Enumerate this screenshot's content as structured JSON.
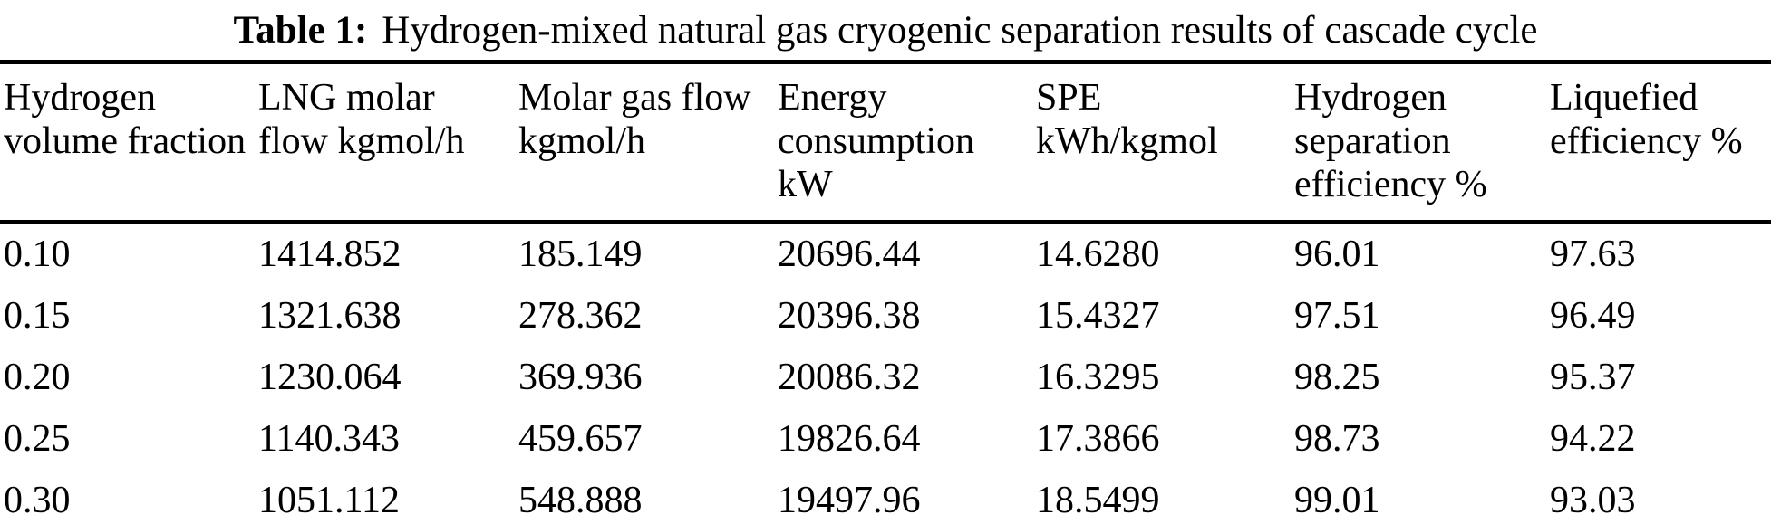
{
  "colors": {
    "background": "#ffffff",
    "text": "#000000",
    "rule": "#000000"
  },
  "table": {
    "title_label": "Table 1:",
    "title_text": "Hydrogen-mixed natural gas cryogenic separation results of cascade cycle",
    "columns": [
      "Hydrogen volume fraction",
      "LNG molar flow kgmol/h",
      "Molar gas flow kgmol/h",
      "Energy consumption kW",
      "SPE kWh/kgmol",
      "Hydrogen separation efficiency %",
      "Liquefied efficiency %"
    ],
    "rows": [
      [
        "0.10",
        "1414.852",
        "185.149",
        "20696.44",
        "14.6280",
        "96.01",
        "97.63"
      ],
      [
        "0.15",
        "1321.638",
        "278.362",
        "20396.38",
        "15.4327",
        "97.51",
        "96.49"
      ],
      [
        "0.20",
        "1230.064",
        "369.936",
        "20086.32",
        "16.3295",
        "98.25",
        "95.37"
      ],
      [
        "0.25",
        "1140.343",
        "459.657",
        "19826.64",
        "17.3866",
        "98.73",
        "94.22"
      ],
      [
        "0.30",
        "1051.112",
        "548.888",
        "19497.96",
        "18.5499",
        "99.01",
        "93.03"
      ]
    ]
  }
}
